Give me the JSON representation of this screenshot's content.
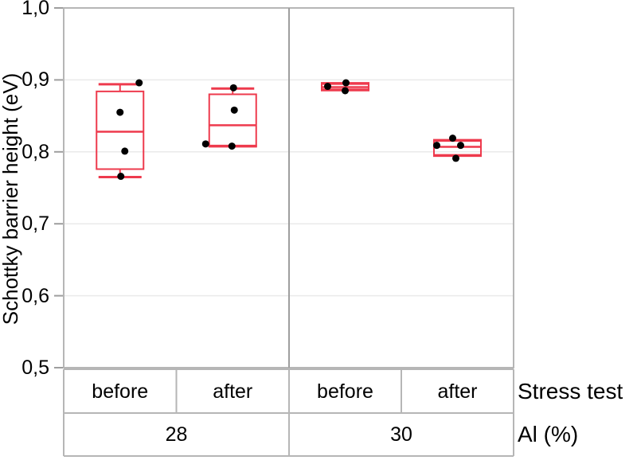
{
  "chart_data": {
    "type": "boxplot",
    "title": "",
    "ylabel": "Schottky barrier height (eV)",
    "xlabel_primary": "Stress test",
    "xlabel_secondary": "Al (%)",
    "ylim": [
      0.5,
      1.0
    ],
    "grid": "horizontal",
    "yticks": [
      {
        "value": 1.0,
        "label": "1,0"
      },
      {
        "value": 0.9,
        "label": "0,9"
      },
      {
        "value": 0.8,
        "label": "0,8"
      },
      {
        "value": 0.7,
        "label": "0,7"
      },
      {
        "value": 0.6,
        "label": "0,6"
      },
      {
        "value": 0.5,
        "label": "0,5"
      }
    ],
    "colors": {
      "box": "#ee3a4d",
      "point": "#000000",
      "border": "#b6b6b6",
      "gridline": "#eaeaea",
      "divider": "#9e9e9e"
    },
    "groups": [
      {
        "label": "28",
        "boxes": [
          {
            "label": "before",
            "whisker_low": 0.765,
            "q1": 0.776,
            "median": 0.828,
            "q3": 0.884,
            "whisker_high": 0.894,
            "points": [
              {
                "v": 0.896,
                "dx": 24
              },
              {
                "v": 0.855,
                "dx": 0
              },
              {
                "v": 0.801,
                "dx": 6
              },
              {
                "v": 0.766,
                "dx": 1
              }
            ]
          },
          {
            "label": "after",
            "whisker_low": 0.808,
            "q1": 0.808,
            "median": 0.837,
            "q3": 0.88,
            "whisker_high": 0.888,
            "points": [
              {
                "v": 0.889,
                "dx": 1
              },
              {
                "v": 0.858,
                "dx": 2
              },
              {
                "v": 0.811,
                "dx": -34
              },
              {
                "v": 0.808,
                "dx": -1
              }
            ]
          }
        ]
      },
      {
        "label": "30",
        "boxes": [
          {
            "label": "before",
            "whisker_low": 0.886,
            "q1": 0.886,
            "median": 0.89,
            "q3": 0.895,
            "whisker_high": 0.895,
            "points": [
              {
                "v": 0.896,
                "dx": 1
              },
              {
                "v": 0.891,
                "dx": -22
              },
              {
                "v": 0.885,
                "dx": 0
              }
            ]
          },
          {
            "label": "after",
            "whisker_low": 0.795,
            "q1": 0.795,
            "median": 0.807,
            "q3": 0.816,
            "whisker_high": 0.816,
            "points": [
              {
                "v": 0.819,
                "dx": -6
              },
              {
                "v": 0.809,
                "dx": -26
              },
              {
                "v": 0.809,
                "dx": 4
              },
              {
                "v": 0.791,
                "dx": -2
              }
            ]
          }
        ]
      }
    ]
  }
}
